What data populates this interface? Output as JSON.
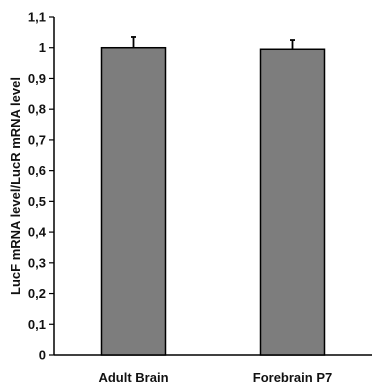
{
  "chart_data": {
    "type": "bar",
    "categories": [
      "Adult Brain",
      "Forebrain P7"
    ],
    "values": [
      1.0,
      0.995
    ],
    "errors": [
      0.035,
      0.03
    ],
    "ylabel": "LucF mRNA level/LucR mRNA level",
    "xlabel": "",
    "ylim": [
      0,
      1.1
    ],
    "yticks": [
      "0",
      "0,1",
      "0,2",
      "0,3",
      "0,4",
      "0,5",
      "0,6",
      "0,7",
      "0,8",
      "0,9",
      "1",
      "1,1"
    ],
    "grid": false,
    "legend": "none",
    "colors": {
      "bar_fill": "#7d7d7d",
      "bar_stroke": "#000000",
      "axis": "#000000"
    }
  }
}
